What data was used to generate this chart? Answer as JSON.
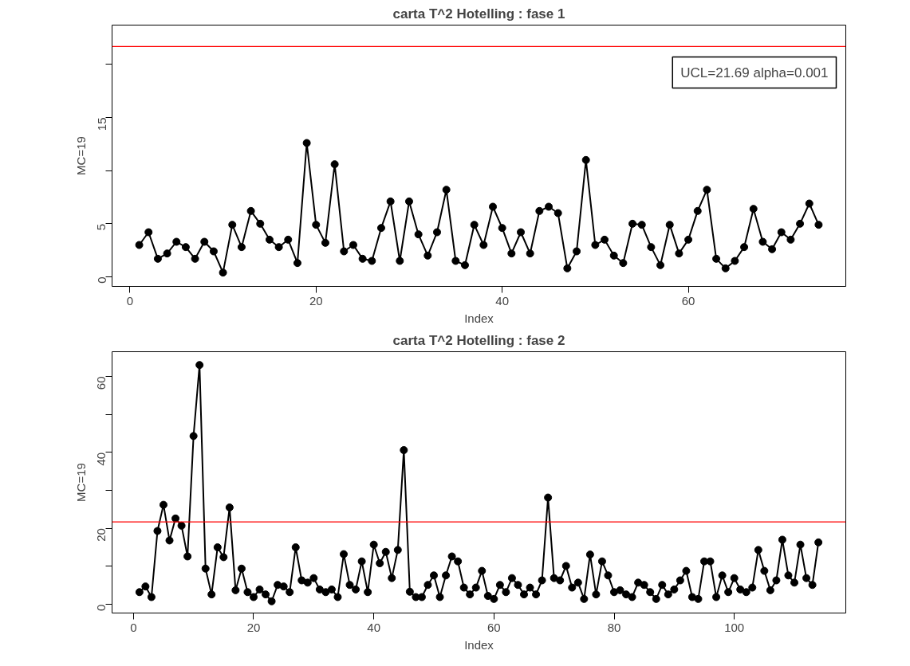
{
  "chart_data": [
    {
      "type": "line",
      "title": "carta T^2 Hotelling : fase 1",
      "xlabel": "Index",
      "ylabel": "MC=19",
      "x": [
        1,
        2,
        3,
        4,
        5,
        6,
        7,
        8,
        9,
        10,
        11,
        12,
        13,
        14,
        15,
        16,
        17,
        18,
        19,
        20,
        21,
        22,
        23,
        24,
        25,
        26,
        27,
        28,
        29,
        30,
        31,
        32,
        33,
        34,
        35,
        36,
        37,
        38,
        39,
        40,
        41,
        42,
        43,
        44,
        45,
        46,
        47,
        48,
        49,
        50,
        51,
        52,
        53,
        54,
        55,
        56,
        57,
        58,
        59,
        60,
        61,
        62,
        63,
        64,
        65,
        66,
        67,
        68,
        69,
        70,
        71,
        72,
        73,
        74
      ],
      "series": [
        {
          "color": "#000000",
          "values": [
            3.0,
            4.2,
            1.7,
            2.2,
            3.3,
            2.8,
            1.7,
            3.3,
            2.4,
            0.4,
            4.9,
            2.8,
            6.2,
            5.0,
            3.5,
            2.8,
            3.5,
            1.3,
            12.6,
            4.9,
            3.2,
            10.6,
            2.4,
            3.0,
            1.7,
            1.5,
            4.6,
            7.1,
            1.5,
            7.1,
            4.0,
            2.0,
            4.2,
            8.2,
            1.5,
            1.1,
            4.9,
            3.0,
            6.6,
            4.6,
            2.2,
            4.2,
            2.2,
            6.2,
            6.6,
            6.0,
            0.8,
            2.4,
            11.0,
            3.0,
            3.5,
            2.0,
            1.3,
            5.0,
            4.9,
            2.8,
            1.1,
            4.9,
            2.2,
            3.5,
            6.2,
            8.2,
            1.7,
            0.8,
            1.5,
            2.8,
            6.4,
            3.3,
            2.6,
            4.2,
            3.5,
            5.0,
            6.9,
            4.9
          ]
        }
      ],
      "xlim": [
        -1.92,
        76.92
      ],
      "ylim": [
        -0.9,
        23.7
      ],
      "xticks": [
        0,
        20,
        40,
        60
      ],
      "yticks": [
        0,
        5,
        {
          "value": 10,
          "label": null
        },
        15,
        {
          "value": 20,
          "label": null
        }
      ],
      "ref_lines": [
        {
          "axis": "y",
          "value": 21.69,
          "color": "#ff0000"
        }
      ],
      "annotations": [
        "UCL=21.69 alpha=0.001"
      ],
      "marker": "circle",
      "line_style": "solid",
      "grid": false
    },
    {
      "type": "line",
      "title": "carta T^2 Hotelling : fase 2",
      "xlabel": "Index",
      "ylabel": "MC=19",
      "x": [
        1,
        2,
        3,
        4,
        5,
        6,
        7,
        8,
        9,
        10,
        11,
        12,
        13,
        14,
        15,
        16,
        17,
        18,
        19,
        20,
        21,
        22,
        23,
        24,
        25,
        26,
        27,
        28,
        29,
        30,
        31,
        32,
        33,
        34,
        35,
        36,
        37,
        38,
        39,
        40,
        41,
        42,
        43,
        44,
        45,
        46,
        47,
        48,
        49,
        50,
        51,
        52,
        53,
        54,
        55,
        56,
        57,
        58,
        59,
        60,
        61,
        62,
        63,
        64,
        65,
        66,
        67,
        68,
        69,
        70,
        71,
        72,
        73,
        74,
        75,
        76,
        77,
        78,
        79,
        80,
        81,
        82,
        83,
        84,
        85,
        86,
        87,
        88,
        89,
        90,
        91,
        92,
        93,
        94,
        95,
        96,
        97,
        98,
        99,
        100,
        101,
        102,
        103,
        104,
        105,
        106,
        107,
        108,
        109,
        110,
        111,
        112,
        113,
        114
      ],
      "series": [
        {
          "color": "#000000",
          "values": [
            3.2,
            4.7,
            1.9,
            19.3,
            26.2,
            16.8,
            22.6,
            20.7,
            12.6,
            44.3,
            63.0,
            9.4,
            2.6,
            15.0,
            12.4,
            25.5,
            3.7,
            9.4,
            3.2,
            1.9,
            3.9,
            2.6,
            0.8,
            5.1,
            4.7,
            3.2,
            15.0,
            6.3,
            5.7,
            6.9,
            3.9,
            3.2,
            3.9,
            1.9,
            13.2,
            5.1,
            3.9,
            11.3,
            3.2,
            15.7,
            10.8,
            13.8,
            6.9,
            14.3,
            40.6,
            3.3,
            1.9,
            1.9,
            5.1,
            7.6,
            1.9,
            7.6,
            12.6,
            11.3,
            4.4,
            2.6,
            4.4,
            8.8,
            2.2,
            1.4,
            5.1,
            3.2,
            6.9,
            5.1,
            2.6,
            4.4,
            2.6,
            6.3,
            28.1,
            6.9,
            6.3,
            10.1,
            4.4,
            5.7,
            1.4,
            13.1,
            2.6,
            11.3,
            7.6,
            3.2,
            3.7,
            2.6,
            1.9,
            5.7,
            5.1,
            3.2,
            1.4,
            5.1,
            2.6,
            3.9,
            6.3,
            8.8,
            1.9,
            1.4,
            11.3,
            11.3,
            1.9,
            7.6,
            3.2,
            6.9,
            3.9,
            3.2,
            4.4,
            14.3,
            8.8,
            3.7,
            6.3,
            17.0,
            7.6,
            5.7,
            15.7,
            6.9,
            5.1,
            16.3
          ]
        }
      ],
      "xlim": [
        -3.56,
        118.56
      ],
      "ylim": [
        -2.3,
        66.5
      ],
      "xticks": [
        0,
        20,
        40,
        60,
        80,
        100
      ],
      "yticks": [
        0,
        {
          "value": 10,
          "label": null
        },
        20,
        {
          "value": 30,
          "label": null
        },
        40,
        {
          "value": 50,
          "label": null
        },
        60
      ],
      "ref_lines": [
        {
          "axis": "y",
          "value": 21.69,
          "color": "#ff0000"
        }
      ],
      "marker": "circle",
      "line_style": "solid",
      "grid": false
    }
  ]
}
